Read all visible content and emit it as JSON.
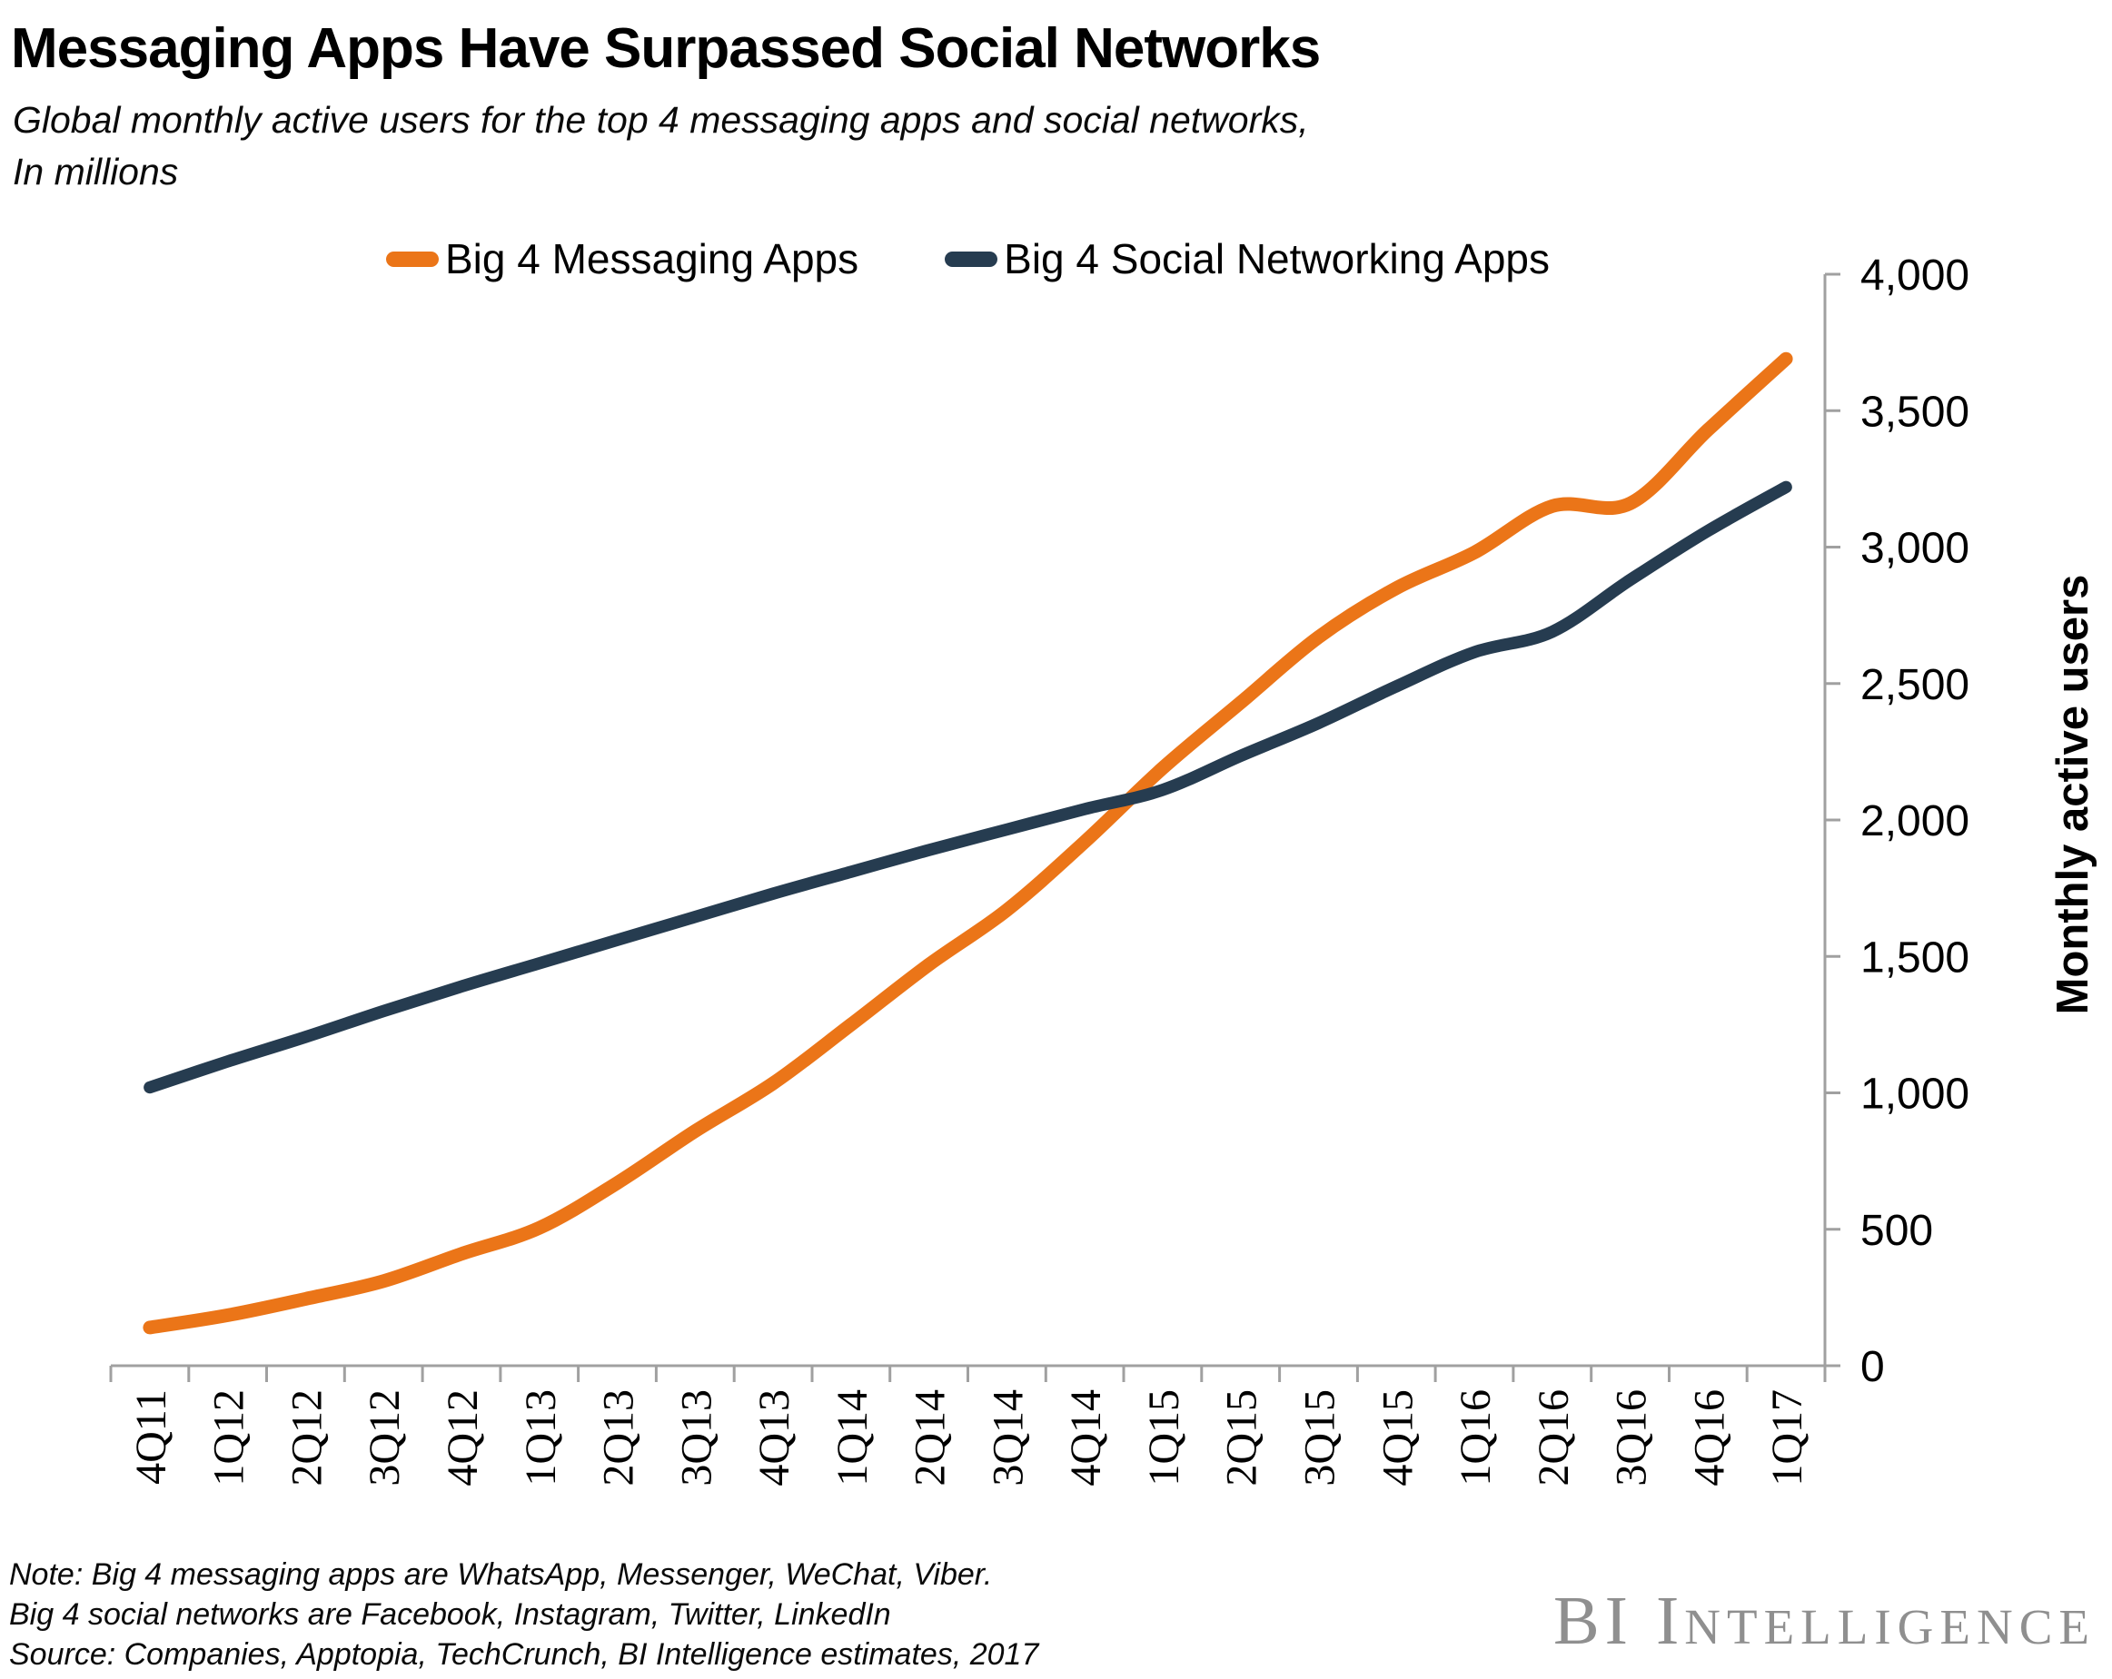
{
  "header": {
    "title": "Messaging Apps Have Surpassed Social Networks",
    "subtitle_line1": "Global monthly active users for the top 4 messaging apps and social networks,",
    "subtitle_line2": "In millions"
  },
  "legend": [
    {
      "label": "Big 4 Messaging Apps",
      "color": "#EB7518"
    },
    {
      "label": "Big 4 Social Networking Apps",
      "color": "#263C50"
    }
  ],
  "chart_data": {
    "type": "line",
    "title": "Messaging Apps Have Surpassed Social Networks",
    "subtitle": "Global monthly active users for the top 4 messaging apps and social networks, In millions",
    "categories": [
      "4Q11",
      "1Q12",
      "2Q12",
      "3Q12",
      "4Q12",
      "1Q13",
      "2Q13",
      "3Q13",
      "4Q13",
      "1Q14",
      "2Q14",
      "3Q14",
      "4Q14",
      "1Q15",
      "2Q15",
      "3Q15",
      "4Q15",
      "1Q16",
      "2Q16",
      "3Q16",
      "4Q16",
      "1Q17"
    ],
    "series": [
      {
        "name": "Big 4 Messaging Apps",
        "color": "#EB7518",
        "values": [
          140,
          185,
          245,
          310,
          410,
          505,
          670,
          860,
          1035,
          1250,
          1470,
          1670,
          1920,
          2190,
          2430,
          2670,
          2850,
          2980,
          3150,
          3160,
          3430,
          3690
        ]
      },
      {
        "name": "Big 4 Social Networking Apps",
        "color": "#263C50",
        "values": [
          1020,
          1115,
          1205,
          1300,
          1390,
          1475,
          1560,
          1645,
          1730,
          1810,
          1890,
          1965,
          2040,
          2110,
          2235,
          2355,
          2490,
          2615,
          2690,
          2880,
          3060,
          3220
        ]
      }
    ],
    "xlabel": "",
    "ylabel": "Monthly active users",
    "ylim": [
      0,
      4000
    ],
    "ytick_step": 500,
    "ytick_labels": [
      "0",
      "500",
      "1,000",
      "1,500",
      "2,000",
      "2,500",
      "3,000",
      "3,500",
      "4,000"
    ],
    "grid": false,
    "legend_position": "top",
    "line_style": "smooth"
  },
  "footer": {
    "note_line1": "Note: Big 4 messaging apps are WhatsApp, Messenger, WeChat, Viber.",
    "note_line2": "Big 4 social networks are Facebook, Instagram, Twitter, LinkedIn",
    "source_line": "Source: Companies,  Apptopia, TechCrunch,  BI Intelligence estimates, 2017",
    "logo_big": "BI I",
    "logo_small": "NTELLIGENCE"
  }
}
